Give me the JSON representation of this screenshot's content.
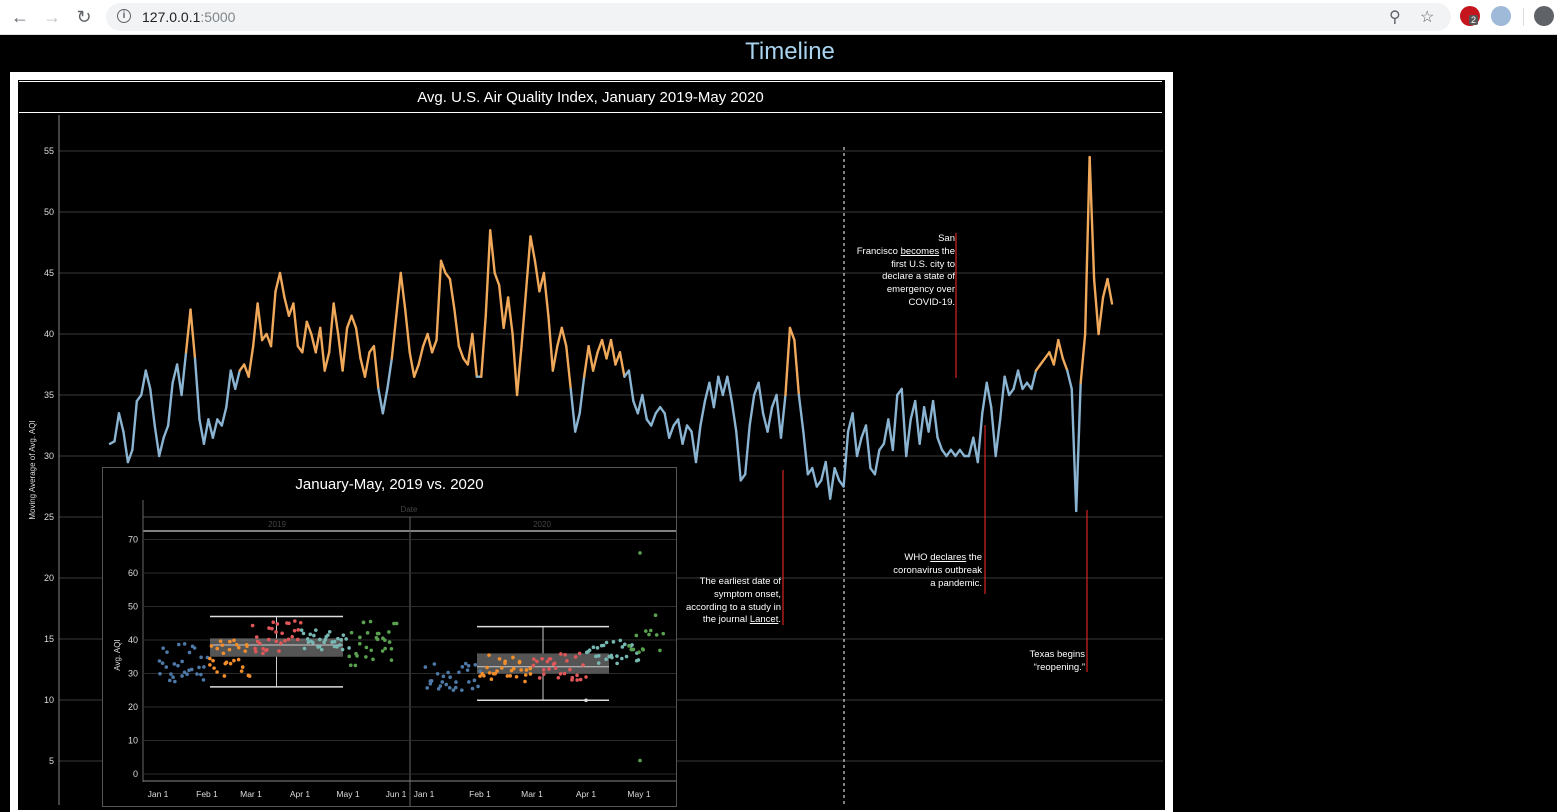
{
  "browser": {
    "url_host": "127.0.0.1",
    "url_port": ":5000",
    "extension_badge": "2"
  },
  "page": {
    "title": "Timeline"
  },
  "main_chart": {
    "title": "Avg. U.S. Air Quality Index, January 2019-May 2020",
    "ylabel": "Moving Average of Avg. AQI",
    "yticks": [
      5,
      10,
      15,
      20,
      25,
      30,
      35,
      40,
      45,
      50,
      55
    ],
    "ylim": [
      0,
      57
    ],
    "colors": {
      "high": "#f0a95a",
      "low": "#8ab4d1",
      "marker": "#ff2a2a"
    },
    "annotations": [
      {
        "id": "lancet",
        "lines": [
          "The earliest date of",
          "symptom onset,",
          "according to a study in",
          "the journal "
        ],
        "link": "Lancet",
        "suffix": "."
      },
      {
        "id": "sf",
        "lines": [
          "San",
          "Francisco ",
          "first U.S. city to",
          "declare a state of",
          "emergency over",
          "COVID-19."
        ],
        "link": "becomes",
        "link_suffix": " the"
      },
      {
        "id": "who",
        "lines": [
          "WHO ",
          "coronavirus outbreak",
          "a pandemic."
        ],
        "link": "declares",
        "link_suffix": " the"
      },
      {
        "id": "texas",
        "lines": [
          "Texas begins",
          "“reopening.”"
        ]
      }
    ]
  },
  "chart_data": [
    {
      "type": "line",
      "title": "Avg. U.S. Air Quality Index, January 2019-May 2020",
      "ylabel": "Moving Average of Avg. AQI",
      "ylim": [
        0,
        57
      ],
      "series": [
        {
          "values": [
            31.0,
            31.2,
            33.5,
            32.0,
            29.5,
            30.5,
            34.5,
            35.0,
            37.0,
            35.5,
            32.5,
            30.0,
            31.5,
            32.5,
            36.0,
            37.5,
            35.0,
            38.5,
            42.0,
            38.0,
            33.0,
            31.0,
            33.0,
            31.5,
            33.0,
            32.5,
            34.0,
            37.0,
            35.5,
            37.0,
            37.5,
            36.5,
            39.0,
            42.5,
            39.5,
            40.0,
            39.0,
            43.5,
            45.0,
            43.0,
            41.5,
            42.5,
            39.0,
            38.5,
            41.0,
            40.0,
            38.5,
            40.5,
            37.0,
            38.5,
            42.5,
            40.0,
            37.0,
            40.5,
            41.5,
            40.5,
            38.0,
            36.5,
            38.5,
            39.0,
            35.5,
            33.5,
            35.5,
            38.0,
            41.5,
            45.0,
            42.0,
            38.5,
            36.5,
            37.5,
            39.0,
            40.0,
            38.5,
            39.5,
            46.0,
            45.0,
            44.5,
            42.0,
            39.0,
            38.0,
            37.5,
            40.0,
            36.5,
            36.5,
            41.5,
            48.5,
            45.0,
            44.0,
            40.5,
            43.0,
            40.0,
            35.0,
            39.0,
            43.5,
            48.0,
            46.0,
            43.5,
            45.0,
            41.5,
            37.0,
            39.0,
            40.5,
            39.0,
            35.5,
            32.0,
            33.5,
            36.5,
            39.0,
            37.0,
            38.5,
            39.5,
            38.0,
            39.5,
            37.5,
            38.5,
            36.5,
            37.0,
            34.5,
            33.5,
            35.0,
            33.0,
            32.5,
            33.5,
            34.0,
            33.5,
            31.5,
            32.5,
            33.0,
            31.0,
            32.5,
            32.0,
            29.5,
            32.5,
            34.5,
            36.0,
            34.0,
            36.5,
            35.0,
            36.5,
            34.5,
            32.0,
            28.0,
            28.5,
            32.5,
            35.0,
            36.0,
            33.5,
            32.0,
            34.0,
            35.0,
            31.5,
            35.0,
            40.5,
            39.5,
            35.0,
            32.0,
            28.5,
            29.0,
            27.5,
            28.0,
            29.5,
            26.5,
            29.0,
            28.0,
            27.5,
            32.0,
            33.5,
            30.0,
            31.5,
            32.5,
            29.0,
            28.5,
            30.5,
            31.0,
            33.0,
            30.5,
            35.0,
            35.5,
            30.0,
            33.0,
            34.5,
            31.0,
            34.0,
            32.0,
            34.5,
            31.5,
            30.5,
            30.0,
            30.5,
            30.0,
            30.5,
            30.0,
            30.0,
            31.5,
            29.5,
            33.5,
            36.0,
            34.0,
            30.0,
            33.0,
            36.5,
            35.0,
            35.5,
            37.0,
            35.5,
            36.0,
            35.5,
            37.0,
            37.5,
            38.0,
            38.5,
            37.5,
            39.5,
            38.0,
            37.0,
            35.5,
            25.5,
            36.0,
            40.0,
            54.5,
            44.5,
            40.0,
            43.0,
            44.5,
            42.5
          ]
        }
      ],
      "note": "Dates run January 2019 to May 2020; the x axis is not labelled in the image."
    },
    {
      "type": "scatter",
      "title": "January-May, 2019 vs. 2020",
      "panel_header": "Date",
      "panels": [
        "2019",
        "2020"
      ],
      "ylabel": "Avg. AQI",
      "yticks": [
        0,
        10,
        20,
        30,
        40,
        50,
        60,
        70
      ],
      "ylim": [
        0,
        72
      ],
      "xticks_2019": [
        "Jan 1",
        "Feb 1",
        "Mar 1",
        "Apr 1",
        "May 1",
        "Jun 1"
      ],
      "xticks_2020": [
        "Jan 1",
        "Feb 1",
        "Mar 1",
        "Apr 1",
        "May 1"
      ],
      "month_colors": {
        "Jan": "#4e79a7",
        "Feb": "#f28e2b",
        "Mar": "#e15759",
        "Apr": "#76b7b2",
        "May": "#59a14f"
      },
      "boxplot_2019": {
        "whisker_low": 26,
        "q1": 35,
        "median": 38.5,
        "q3": 40.5,
        "whisker_high": 47
      },
      "boxplot_2020": {
        "whisker_low": 22,
        "q1": 30,
        "median": 32,
        "q3": 36,
        "whisker_high": 44
      }
    }
  ]
}
